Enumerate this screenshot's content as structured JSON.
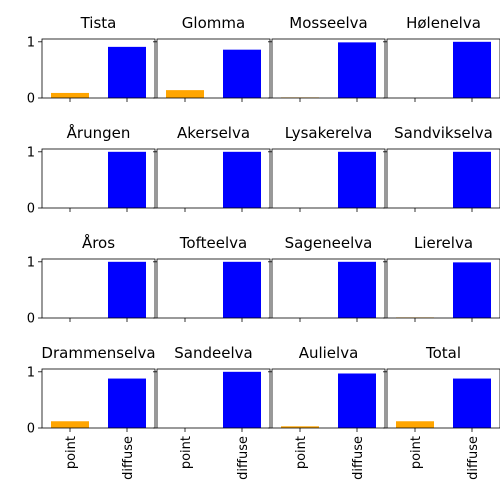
{
  "chart_data": {
    "type": "bar",
    "layout": "small-multiples-4x4",
    "categories": [
      "point",
      "diffuse"
    ],
    "colors": {
      "point": "#ffa500",
      "diffuse": "#0000ff"
    },
    "ylim": [
      0,
      1.05
    ],
    "yticks": [
      0,
      1
    ],
    "grid": false,
    "panels": [
      {
        "title": "Tista",
        "values": [
          0.09,
          0.91
        ]
      },
      {
        "title": "Glomma",
        "values": [
          0.14,
          0.86
        ]
      },
      {
        "title": "Mosseelva",
        "values": [
          0.01,
          0.99
        ]
      },
      {
        "title": "Hølenelva",
        "values": [
          0.0,
          1.0
        ]
      },
      {
        "title": "Årungen",
        "values": [
          0.0,
          1.0
        ]
      },
      {
        "title": "Akerselva",
        "values": [
          0.0,
          1.0
        ]
      },
      {
        "title": "Lysakerelva",
        "values": [
          0.0,
          1.0
        ]
      },
      {
        "title": "Sandvikselva",
        "values": [
          0.0,
          1.0
        ]
      },
      {
        "title": "Åros",
        "values": [
          0.0,
          1.0
        ]
      },
      {
        "title": "Tofteelva",
        "values": [
          0.0,
          1.0
        ]
      },
      {
        "title": "Sageneelva",
        "values": [
          0.0,
          1.0
        ]
      },
      {
        "title": "Lierelva",
        "values": [
          0.01,
          0.99
        ]
      },
      {
        "title": "Drammenselva",
        "values": [
          0.12,
          0.88
        ]
      },
      {
        "title": "Sandeelva",
        "values": [
          0.0,
          1.0
        ]
      },
      {
        "title": "Aulielva",
        "values": [
          0.03,
          0.97
        ]
      },
      {
        "title": "Total",
        "values": [
          0.12,
          0.88
        ]
      }
    ]
  }
}
